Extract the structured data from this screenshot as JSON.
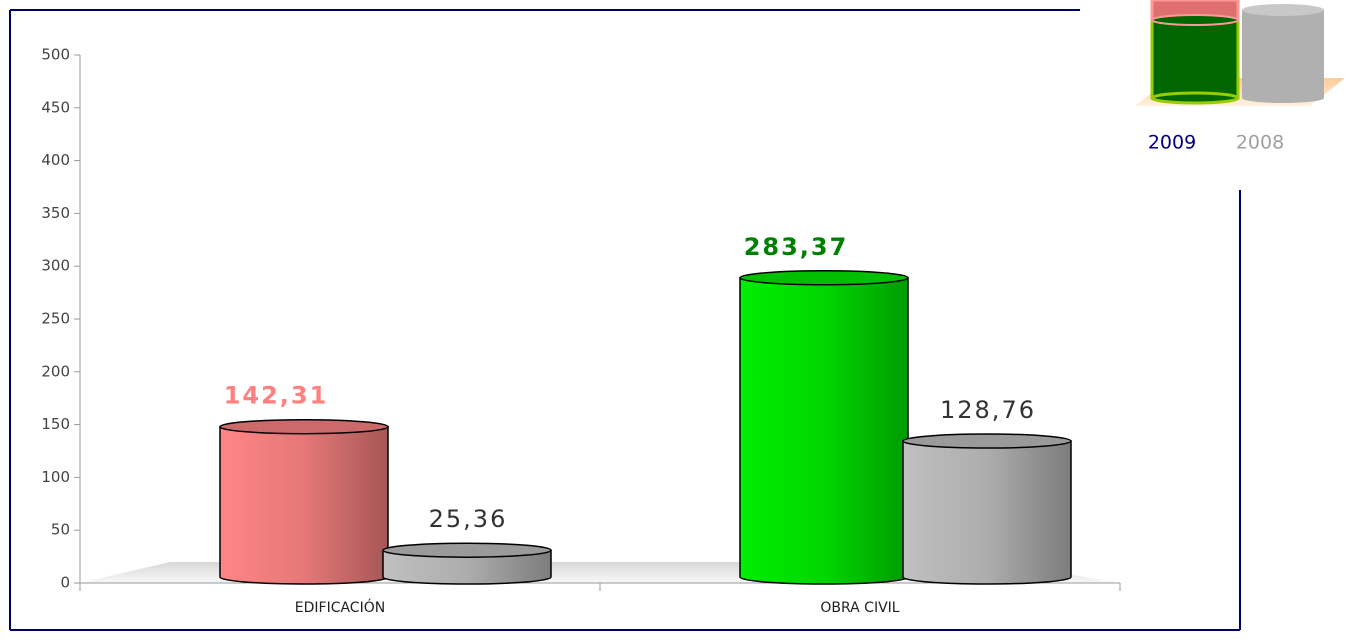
{
  "chart_data": {
    "type": "bar",
    "categories": [
      "EDIFICACIÓN",
      "OBRA CIVIL"
    ],
    "series": [
      {
        "name": "2009",
        "color": "#000080",
        "colors": [
          "#ff8585",
          "#00ee00"
        ],
        "label_colors": [
          "#ff8080",
          "#008000"
        ],
        "values": [
          142.31,
          283.37
        ],
        "value_labels": [
          "142,31",
          "283,37"
        ]
      },
      {
        "name": "2008",
        "color": "#a0a0a0",
        "colors": [
          "#c0c0c0",
          "#c0c0c0"
        ],
        "label_colors": [
          "#333333",
          "#333333"
        ],
        "values": [
          25.36,
          128.76
        ],
        "value_labels": [
          "25,36",
          "128,76"
        ]
      }
    ],
    "ylim": [
      0,
      500
    ],
    "yticks": [
      0,
      50,
      100,
      150,
      200,
      250,
      300,
      350,
      400,
      450,
      500
    ]
  }
}
